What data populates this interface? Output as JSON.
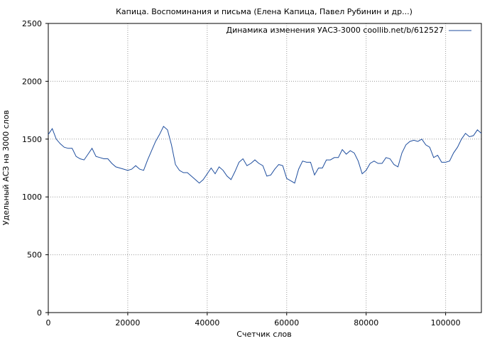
{
  "chart_data": {
    "type": "line",
    "title": "Капица. Воспоминания и письма (Елена Капица, Павел Рубинин и др...)",
    "xlabel": "Счетчик слов",
    "ylabel": "Удельный АСЗ на 3000 слов",
    "xlim": [
      0,
      109000
    ],
    "ylim": [
      0,
      2500
    ],
    "xticks": [
      0,
      20000,
      40000,
      60000,
      80000,
      100000
    ],
    "yticks": [
      0,
      500,
      1000,
      1500,
      2000,
      2500
    ],
    "grid": true,
    "legend_position": "top-right",
    "series": [
      {
        "name": "Динамика изменения УАСЗ-3000 coollib.net/b/612527",
        "color": "#1f4e9e",
        "x": [
          0,
          1000,
          2000,
          3000,
          4000,
          5000,
          6000,
          7000,
          8000,
          9000,
          10000,
          11000,
          12000,
          13000,
          14000,
          15000,
          16000,
          17000,
          18000,
          19000,
          20000,
          21000,
          22000,
          23000,
          24000,
          25000,
          26000,
          27000,
          28000,
          29000,
          30000,
          31000,
          32000,
          33000,
          34000,
          35000,
          36000,
          37000,
          38000,
          39000,
          40000,
          41000,
          42000,
          43000,
          44000,
          45000,
          46000,
          47000,
          48000,
          49000,
          50000,
          51000,
          52000,
          53000,
          54000,
          55000,
          56000,
          57000,
          58000,
          59000,
          60000,
          61000,
          62000,
          63000,
          64000,
          65000,
          66000,
          67000,
          68000,
          69000,
          70000,
          71000,
          72000,
          73000,
          74000,
          75000,
          76000,
          77000,
          78000,
          79000,
          80000,
          81000,
          82000,
          83000,
          84000,
          85000,
          86000,
          87000,
          88000,
          89000,
          90000,
          91000,
          92000,
          93000,
          94000,
          95000,
          96000,
          97000,
          98000,
          99000,
          100000,
          101000,
          102000,
          103000,
          104000,
          105000,
          106000,
          107000,
          108000,
          109000
        ],
        "values": [
          1540,
          1590,
          1500,
          1460,
          1430,
          1420,
          1420,
          1350,
          1330,
          1320,
          1370,
          1420,
          1350,
          1340,
          1330,
          1330,
          1290,
          1260,
          1250,
          1240,
          1230,
          1240,
          1270,
          1240,
          1230,
          1320,
          1400,
          1480,
          1540,
          1610,
          1580,
          1450,
          1280,
          1230,
          1210,
          1210,
          1180,
          1150,
          1120,
          1150,
          1200,
          1250,
          1200,
          1260,
          1230,
          1180,
          1150,
          1220,
          1300,
          1330,
          1270,
          1290,
          1320,
          1290,
          1270,
          1180,
          1190,
          1240,
          1280,
          1270,
          1160,
          1140,
          1120,
          1240,
          1310,
          1300,
          1300,
          1190,
          1250,
          1250,
          1320,
          1320,
          1340,
          1340,
          1410,
          1370,
          1400,
          1380,
          1310,
          1200,
          1230,
          1290,
          1310,
          1290,
          1290,
          1340,
          1330,
          1280,
          1260,
          1380,
          1450,
          1480,
          1490,
          1480,
          1500,
          1450,
          1430,
          1340,
          1360,
          1300,
          1300,
          1310,
          1380,
          1430,
          1500,
          1550,
          1520,
          1530,
          1580,
          1550
        ]
      }
    ]
  }
}
